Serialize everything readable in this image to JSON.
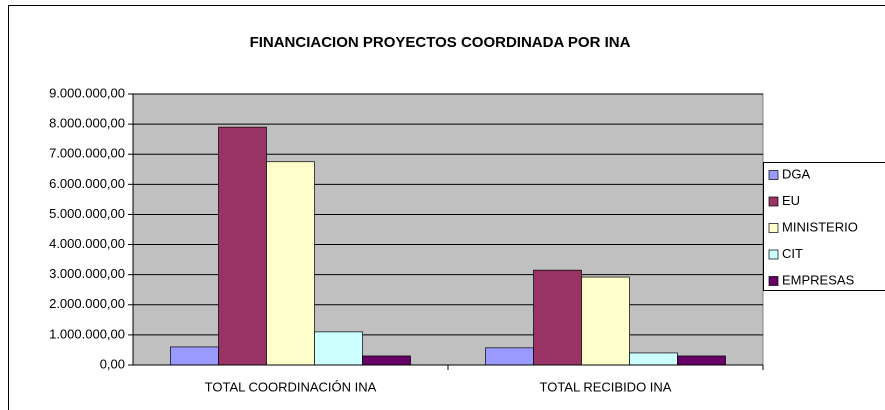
{
  "chart_data": {
    "type": "bar",
    "title": "FINANCIACION PROYECTOS COORDINADA POR INA",
    "categories": [
      "TOTAL COORDINACIÓN INA",
      "TOTAL RECIBIDO INA"
    ],
    "series": [
      {
        "name": "DGA",
        "color": "#9999ff",
        "values": [
          600000,
          570000
        ]
      },
      {
        "name": "EU",
        "color": "#993366",
        "values": [
          7900000,
          3150000
        ]
      },
      {
        "name": "MINISTERIO",
        "color": "#ffffcc",
        "values": [
          6750000,
          2920000
        ]
      },
      {
        "name": "CIT",
        "color": "#ccffff",
        "values": [
          1100000,
          400000
        ]
      },
      {
        "name": "EMPRESAS",
        "color": "#660066",
        "values": [
          300000,
          300000
        ]
      }
    ],
    "ylim": [
      0,
      9000000
    ],
    "yticks": [
      {
        "value": 0,
        "label": "0,00"
      },
      {
        "value": 1000000,
        "label": "1.000.000,00"
      },
      {
        "value": 2000000,
        "label": "2.000.000,00"
      },
      {
        "value": 3000000,
        "label": "3.000.000,00"
      },
      {
        "value": 4000000,
        "label": "4.000.000,00"
      },
      {
        "value": 5000000,
        "label": "5.000.000,00"
      },
      {
        "value": 6000000,
        "label": "6.000.000,00"
      },
      {
        "value": 7000000,
        "label": "7.000.000,00"
      },
      {
        "value": 8000000,
        "label": "8.000.000,00"
      },
      {
        "value": 9000000,
        "label": "9.000.000,00"
      }
    ],
    "grid": true,
    "legend": "right"
  }
}
